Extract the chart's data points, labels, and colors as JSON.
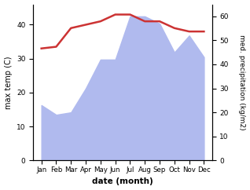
{
  "months": [
    "Jan",
    "Feb",
    "Mar",
    "Apr",
    "May",
    "Jun",
    "Jul",
    "Aug",
    "Sep",
    "Oct",
    "Nov",
    "Dec"
  ],
  "temp": [
    33,
    33.5,
    39,
    40,
    41,
    43,
    43,
    41,
    41,
    39,
    38,
    38
  ],
  "precip": [
    23,
    19,
    20,
    30,
    42,
    42,
    60,
    60,
    57,
    45,
    52,
    43
  ],
  "temp_color": "#cc3333",
  "precip_color": "#b0baee",
  "ylabel_left": "max temp (C)",
  "ylabel_right": "med. precipitation (kg/m2)",
  "xlabel": "date (month)",
  "ylim_left": [
    0,
    46
  ],
  "ylim_right": [
    0,
    65
  ],
  "yticks_left": [
    0,
    10,
    20,
    30,
    40
  ],
  "yticks_right": [
    0,
    10,
    20,
    30,
    40,
    50,
    60
  ],
  "bg_color": "#ffffff"
}
